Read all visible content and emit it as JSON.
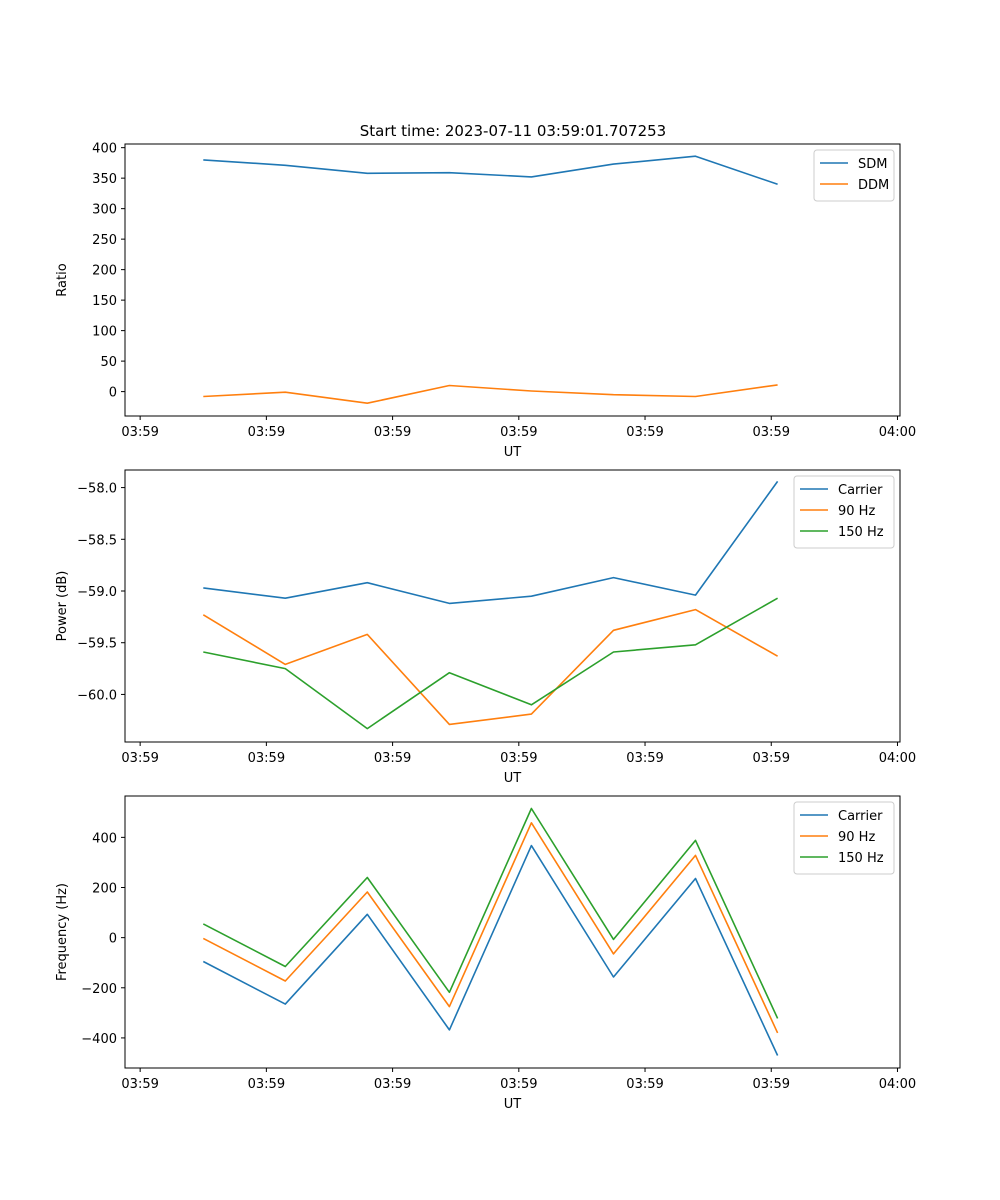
{
  "figure": {
    "title": "Start time: 2023-07-11 03:59:01.707253",
    "colors": {
      "blue": "#1f77b4",
      "orange": "#ff7f0e",
      "green": "#2ca02c"
    }
  },
  "chart_data": [
    {
      "type": "line",
      "xlabel": "UT",
      "ylabel": "Ratio",
      "x_tick_labels": [
        "03:59",
        "03:59",
        "03:59",
        "03:59",
        "03:59",
        "03:59",
        "04:00"
      ],
      "x_ticks_seconds": [
        0,
        1,
        2,
        3,
        4,
        5,
        6
      ],
      "xlim": [
        -0.12,
        6.02
      ],
      "x": [
        0.5,
        1.15,
        1.8,
        2.45,
        3.1,
        3.75,
        4.4,
        5.05
      ],
      "ylim": [
        -40,
        406
      ],
      "y_ticks": [
        0,
        50,
        100,
        150,
        200,
        250,
        300,
        350,
        400
      ],
      "y_tick_labels": [
        "0",
        "50",
        "100",
        "150",
        "200",
        "250",
        "300",
        "350",
        "400"
      ],
      "legend_position": "top-right",
      "series": [
        {
          "name": "SDM",
          "color": "#1f77b4",
          "values": [
            380,
            371,
            358,
            359,
            352,
            373,
            386,
            340
          ]
        },
        {
          "name": "DDM",
          "color": "#ff7f0e",
          "values": [
            -8,
            -1,
            -19,
            10,
            1,
            -5,
            -8,
            11
          ]
        }
      ]
    },
    {
      "type": "line",
      "xlabel": "UT",
      "ylabel": "Power (dB)",
      "x_tick_labels": [
        "03:59",
        "03:59",
        "03:59",
        "03:59",
        "03:59",
        "03:59",
        "04:00"
      ],
      "x_ticks_seconds": [
        0,
        1,
        2,
        3,
        4,
        5,
        6
      ],
      "xlim": [
        -0.12,
        6.02
      ],
      "x": [
        0.5,
        1.15,
        1.8,
        2.45,
        3.1,
        3.75,
        4.4,
        5.05
      ],
      "ylim": [
        -60.46,
        -57.83
      ],
      "y_ticks": [
        -60.0,
        -59.5,
        -59.0,
        -58.5,
        -58.0
      ],
      "y_tick_labels": [
        "−60.0",
        "−59.5",
        "−59.0",
        "−58.5",
        "−58.0"
      ],
      "legend_position": "top-right",
      "series": [
        {
          "name": "Carrier",
          "color": "#1f77b4",
          "values": [
            -58.97,
            -59.07,
            -58.92,
            -59.12,
            -59.05,
            -58.87,
            -59.04,
            -57.94
          ]
        },
        {
          "name": "90 Hz",
          "color": "#ff7f0e",
          "values": [
            -59.23,
            -59.71,
            -59.42,
            -60.29,
            -60.19,
            -59.38,
            -59.18,
            -59.63
          ]
        },
        {
          "name": "150 Hz",
          "color": "#2ca02c",
          "values": [
            -59.59,
            -59.75,
            -60.33,
            -59.79,
            -60.1,
            -59.59,
            -59.52,
            -59.07
          ]
        }
      ]
    },
    {
      "type": "line",
      "xlabel": "UT",
      "ylabel": "Frequency (Hz)",
      "x_tick_labels": [
        "03:59",
        "03:59",
        "03:59",
        "03:59",
        "03:59",
        "03:59",
        "04:00"
      ],
      "x_ticks_seconds": [
        0,
        1,
        2,
        3,
        4,
        5,
        6
      ],
      "xlim": [
        -0.12,
        6.02
      ],
      "x": [
        0.5,
        1.15,
        1.8,
        2.45,
        3.1,
        3.75,
        4.4,
        5.05
      ],
      "ylim": [
        -520,
        565
      ],
      "y_ticks": [
        -400,
        -200,
        0,
        200,
        400
      ],
      "y_tick_labels": [
        "−400",
        "−200",
        "0",
        "200",
        "400"
      ],
      "legend_position": "top-right",
      "series": [
        {
          "name": "Carrier",
          "color": "#1f77b4",
          "values": [
            -95,
            -265,
            93,
            -368,
            367,
            -157,
            236,
            -470
          ]
        },
        {
          "name": "90 Hz",
          "color": "#ff7f0e",
          "values": [
            -3,
            -173,
            182,
            -275,
            458,
            -65,
            328,
            -380
          ]
        },
        {
          "name": "150 Hz",
          "color": "#2ca02c",
          "values": [
            55,
            -115,
            240,
            -218,
            515,
            -7,
            388,
            -322
          ]
        }
      ]
    }
  ]
}
